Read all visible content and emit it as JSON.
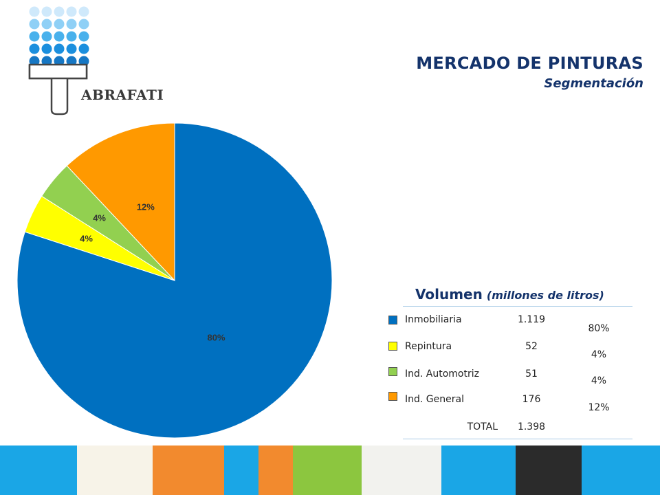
{
  "header": {
    "logo_text": "ABRAFATI",
    "title": "MERCADO DE PINTURAS",
    "subtitle": "Segmentación"
  },
  "chart_data": {
    "type": "pie",
    "slices": [
      {
        "label": "Inmobiliaria",
        "value": 80,
        "value_label": "80%",
        "color": "#0070c0"
      },
      {
        "label": "Repintura",
        "value": 4,
        "value_label": "4%",
        "color": "#ffff00"
      },
      {
        "label": "Ind. Automotriz",
        "value": 4,
        "value_label": "4%",
        "color": "#92d050"
      },
      {
        "label": "Ind. General",
        "value": 12,
        "value_label": "12%",
        "color": "#ff9900"
      }
    ],
    "start": "top, clockwise"
  },
  "volume_table": {
    "heading": "Volumen",
    "unit": "(millones de litros)",
    "rows": [
      {
        "name": "Inmobiliaria",
        "value": "1.119",
        "percent": "80%",
        "color": "#0070c0"
      },
      {
        "name": "Repintura",
        "value": "52",
        "percent": "4%",
        "color": "#ffff00"
      },
      {
        "name": "Ind. Automotriz",
        "value": "51",
        "percent": "4%",
        "color": "#92d050"
      },
      {
        "name": "Ind. General",
        "value": "176",
        "percent": "12%",
        "color": "#ff9900"
      }
    ],
    "total_label": "TOTAL",
    "total_value": "1.398"
  },
  "footer_strip": {
    "colors": [
      "#1aa6e6",
      "#f7f3e8",
      "#f28a2e",
      "#1aa6e6",
      "#f28a2e",
      "#8cc63f",
      "#f2f2ee",
      "#1aa6e6",
      "#2b2b2b",
      "#1aa6e6"
    ]
  }
}
